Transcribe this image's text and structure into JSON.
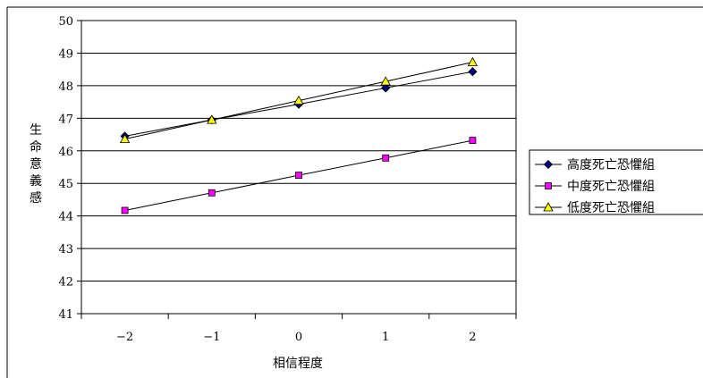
{
  "chart_data": {
    "type": "line",
    "x": [
      "-2",
      "-1",
      "0",
      "1",
      "2"
    ],
    "xlabel": "相信程度",
    "ylabel": "生命意義感",
    "ylim": [
      41,
      50
    ],
    "yticks": [
      41,
      42,
      43,
      44,
      45,
      46,
      47,
      48,
      49,
      50
    ],
    "grid": "horizontal",
    "legend_position": "right",
    "series": [
      {
        "name": "高度死亡恐懼組",
        "marker": "diamond",
        "color": "#000080",
        "values": [
          46.45,
          46.95,
          47.43,
          47.93,
          48.43
        ]
      },
      {
        "name": "中度死亡恐懼組",
        "marker": "square",
        "color": "#ff00ff",
        "values": [
          44.17,
          44.71,
          45.25,
          45.78,
          46.32
        ]
      },
      {
        "name": "低度死亡恐懼組",
        "marker": "triangle",
        "color": "#ffff00",
        "values": [
          46.36,
          46.95,
          47.54,
          48.13,
          48.72
        ]
      }
    ]
  }
}
